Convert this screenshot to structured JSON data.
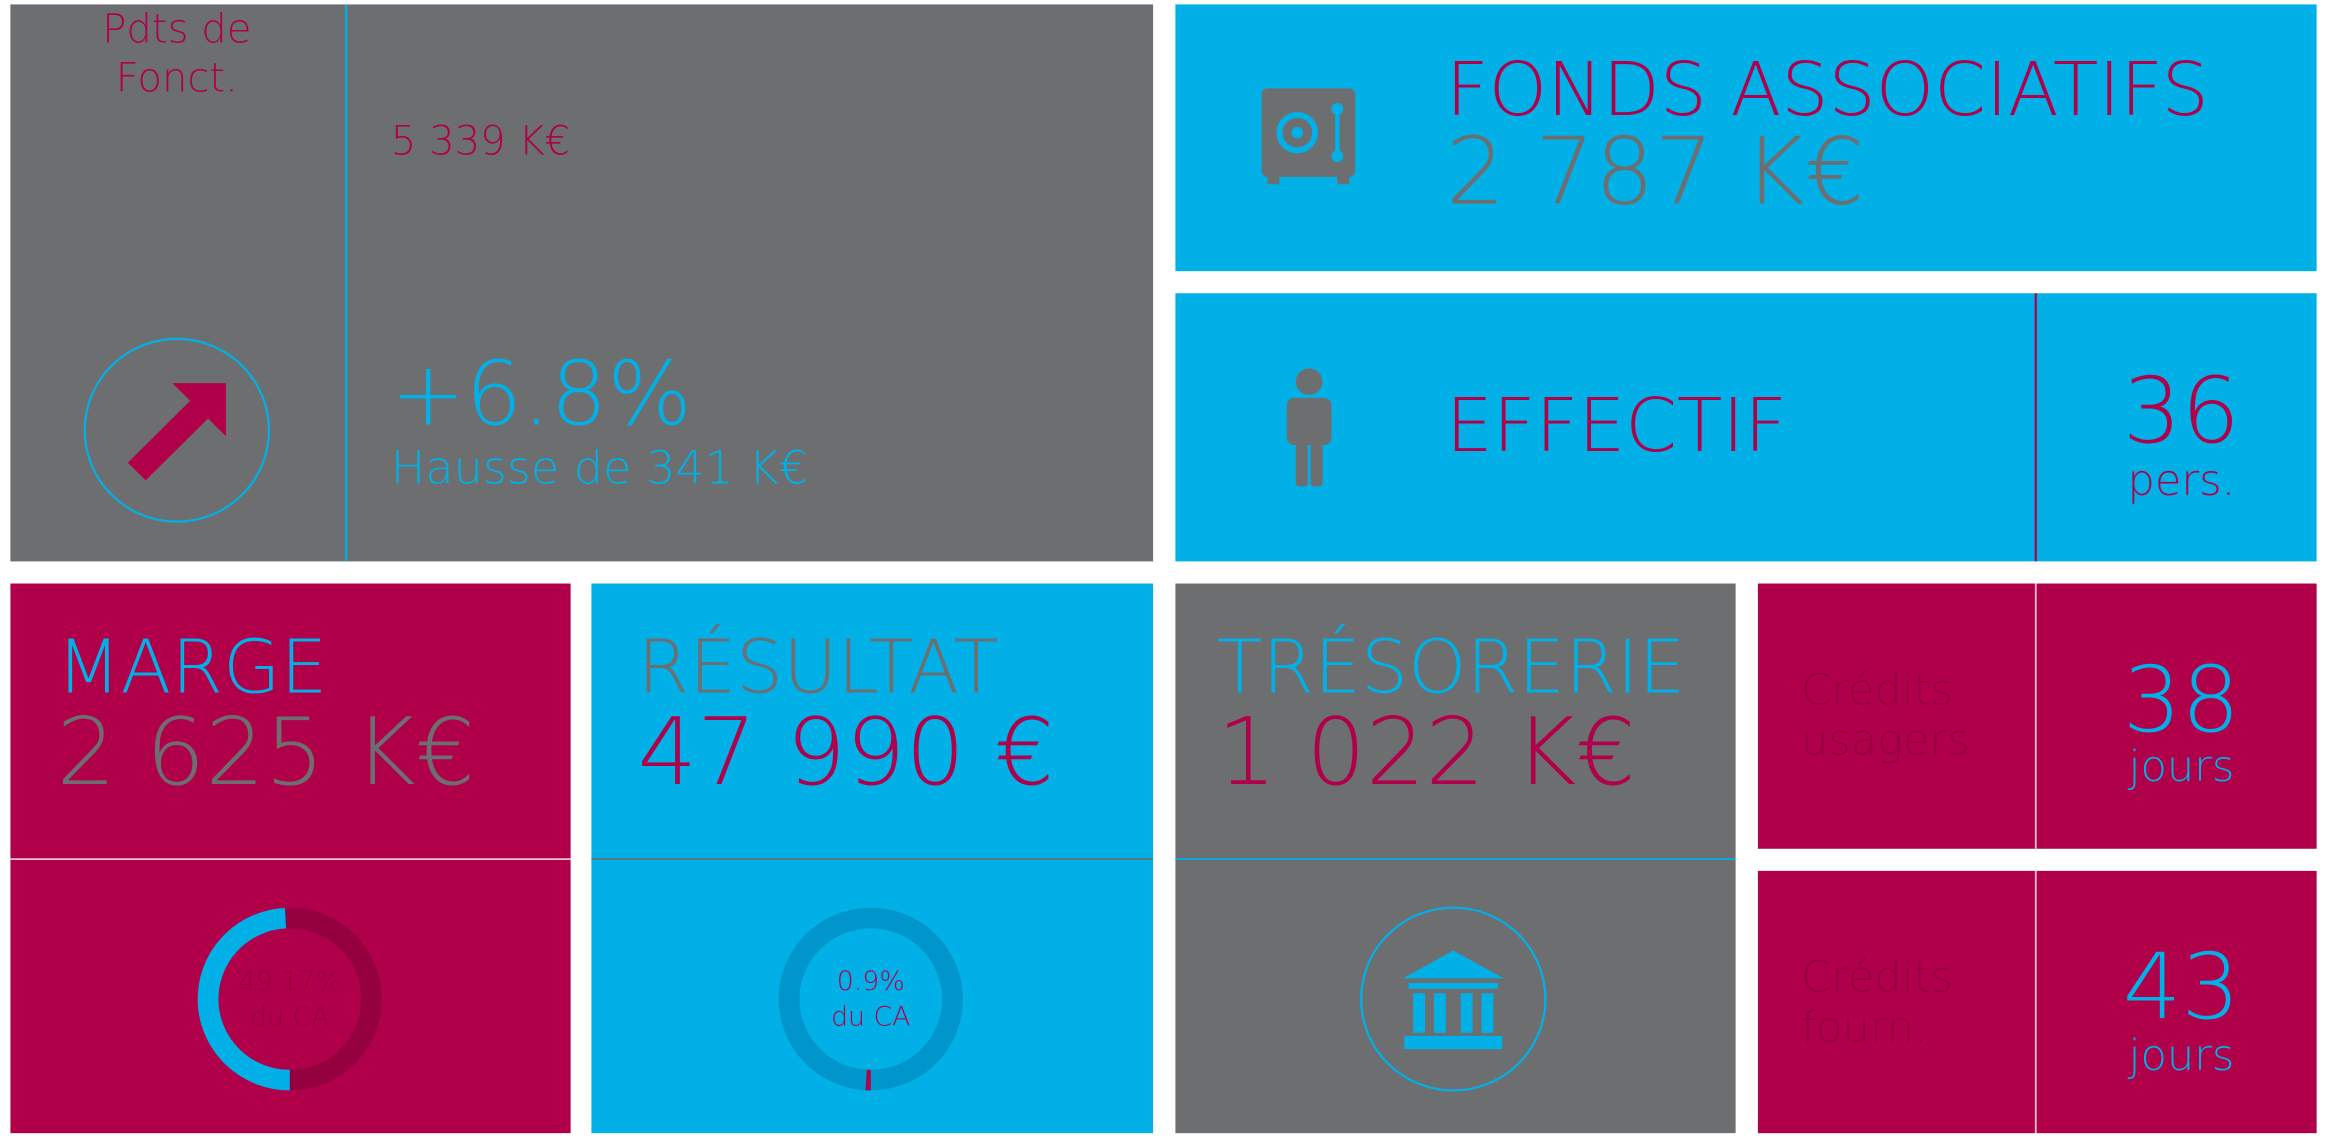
{
  "produits": {
    "label_lines": [
      "Pdts de",
      "Fonct."
    ],
    "amount": "5 339 K€",
    "change": "+6.8%",
    "change_caption": "Hausse de 341 K€"
  },
  "fonds": {
    "title": "FONDS ASSOCIATIFS",
    "amount": "2 787 K€"
  },
  "effectif": {
    "title": "EFFECTIF",
    "count": 36,
    "unit": "pers."
  },
  "marge": {
    "title": "MARGE",
    "amount": "2 625 K€",
    "ratio": 49.17,
    "ratio_label": "49.17%",
    "ratio_caption": "du CA"
  },
  "resultat": {
    "title": "RÉSULTAT",
    "amount": "47 990 €",
    "ratio": 0.9,
    "ratio_label": "0.9%",
    "ratio_caption": "du CA"
  },
  "tresorerie": {
    "title": "TRÉSORERIE",
    "amount": "1 022 K€"
  },
  "credits_usagers": {
    "label_lines": [
      "Crédits",
      "usagers"
    ],
    "days": 38,
    "unit": "jours"
  },
  "credits_fourn": {
    "label_lines": [
      "Crédits",
      "fourn."
    ],
    "days": 43,
    "unit": "jours"
  }
}
